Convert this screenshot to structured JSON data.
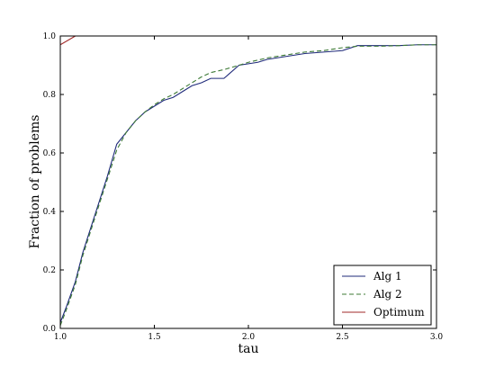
{
  "chart_data": {
    "type": "line",
    "title": "",
    "xlabel": "tau",
    "ylabel": "Fraction of problems",
    "xlim": [
      1.0,
      3.0
    ],
    "ylim": [
      0.0,
      1.0
    ],
    "xticks": [
      "1.0",
      "1.5",
      "2.0",
      "2.5",
      "3.0"
    ],
    "yticks": [
      "0.0",
      "0.2",
      "0.4",
      "0.6",
      "0.8",
      "1.0"
    ],
    "grid": false,
    "legend_position": "bottom-right",
    "series": [
      {
        "name": "Alg 1",
        "color": "#1f2a7a",
        "style": "solid",
        "x": [
          1.0,
          1.03,
          1.08,
          1.12,
          1.17,
          1.21,
          1.25,
          1.3,
          1.35,
          1.4,
          1.45,
          1.5,
          1.55,
          1.6,
          1.65,
          1.7,
          1.75,
          1.8,
          1.87,
          1.95,
          2.0,
          2.05,
          2.1,
          2.2,
          2.3,
          2.4,
          2.5,
          2.58,
          2.7,
          2.8,
          2.9,
          3.0
        ],
        "y": [
          0.02,
          0.07,
          0.16,
          0.26,
          0.36,
          0.44,
          0.52,
          0.63,
          0.67,
          0.71,
          0.74,
          0.76,
          0.78,
          0.79,
          0.81,
          0.83,
          0.84,
          0.855,
          0.855,
          0.9,
          0.905,
          0.91,
          0.92,
          0.93,
          0.94,
          0.945,
          0.95,
          0.967,
          0.967,
          0.967,
          0.97,
          0.97
        ]
      },
      {
        "name": "Alg 2",
        "color": "#3d7a36",
        "style": "dashed",
        "x": [
          1.0,
          1.03,
          1.08,
          1.12,
          1.17,
          1.21,
          1.25,
          1.3,
          1.35,
          1.4,
          1.45,
          1.5,
          1.55,
          1.6,
          1.65,
          1.7,
          1.75,
          1.8,
          1.87,
          1.95,
          2.0,
          2.1,
          2.2,
          2.3,
          2.4,
          2.5,
          2.58,
          2.7,
          2.8,
          2.9,
          3.0
        ],
        "y": [
          0.01,
          0.06,
          0.15,
          0.25,
          0.35,
          0.43,
          0.51,
          0.61,
          0.67,
          0.71,
          0.74,
          0.765,
          0.785,
          0.8,
          0.82,
          0.84,
          0.86,
          0.875,
          0.885,
          0.9,
          0.91,
          0.925,
          0.935,
          0.945,
          0.95,
          0.96,
          0.965,
          0.965,
          0.967,
          0.97,
          0.97
        ]
      },
      {
        "name": "Optimum",
        "color": "#a02828",
        "style": "solid",
        "x": [
          1.0,
          1.08
        ],
        "y": [
          0.97,
          1.0
        ]
      }
    ]
  }
}
